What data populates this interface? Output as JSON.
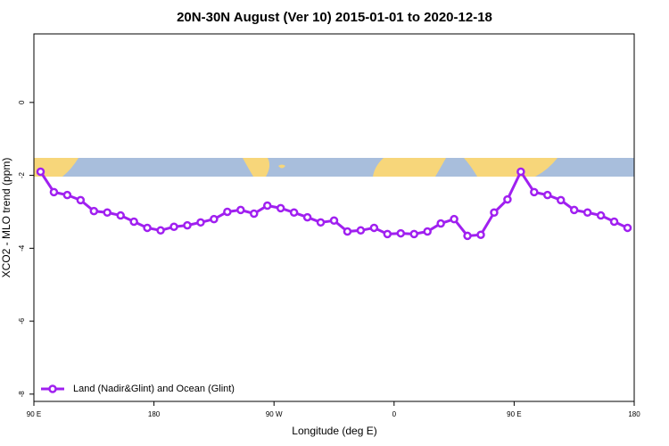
{
  "chart_data": {
    "type": "line",
    "title": "20N-30N August (Ver 10)   2015-01-01 to 2020-12-18",
    "xlabel": "Longitude (deg E)",
    "ylabel": "XCO2 - MLO trend (ppm)",
    "x": [
      95,
      105,
      115,
      125,
      135,
      145,
      155,
      165,
      175,
      185,
      195,
      205,
      215,
      225,
      235,
      245,
      255,
      265,
      275,
      285,
      295,
      305,
      315,
      325,
      335,
      345,
      355,
      365,
      375,
      385,
      395,
      405,
      415,
      425,
      435,
      445,
      455,
      465,
      475,
      485,
      495,
      505,
      515,
      525,
      535
    ],
    "series": [
      {
        "name": "Land (Nadir&Glint) and Ocean (Glint)",
        "color": "#a020f0",
        "values": [
          -1.9,
          -2.46,
          -2.54,
          -2.68,
          -2.98,
          -3.02,
          -3.1,
          -3.27,
          -3.44,
          -3.51,
          -3.41,
          -3.37,
          -3.29,
          -3.2,
          -3.0,
          -2.95,
          -3.05,
          -2.83,
          -2.9,
          -3.02,
          -3.15,
          -3.29,
          -3.24,
          -3.54,
          -3.51,
          -3.44,
          -3.61,
          -3.59,
          -3.61,
          -3.54,
          -3.32,
          -3.2,
          -3.66,
          -3.63,
          -3.02,
          -2.66,
          -1.9,
          -2.46,
          -2.54,
          -2.68,
          -2.95,
          -3.02,
          -3.1,
          -3.27,
          -3.44
        ]
      }
    ],
    "xlim": [
      90,
      540
    ],
    "xticks": [
      {
        "value": 90,
        "label": "90 E"
      },
      {
        "value": 180,
        "label": "180"
      },
      {
        "value": 270,
        "label": "90 W"
      },
      {
        "value": 360,
        "label": "0"
      },
      {
        "value": 450,
        "label": "90 E"
      },
      {
        "value": 540,
        "label": "180"
      }
    ],
    "ylim": [
      -8.2,
      1.88
    ],
    "yticks": [
      -8,
      -6,
      -4,
      -2,
      0
    ],
    "legend": "bottom-left"
  }
}
